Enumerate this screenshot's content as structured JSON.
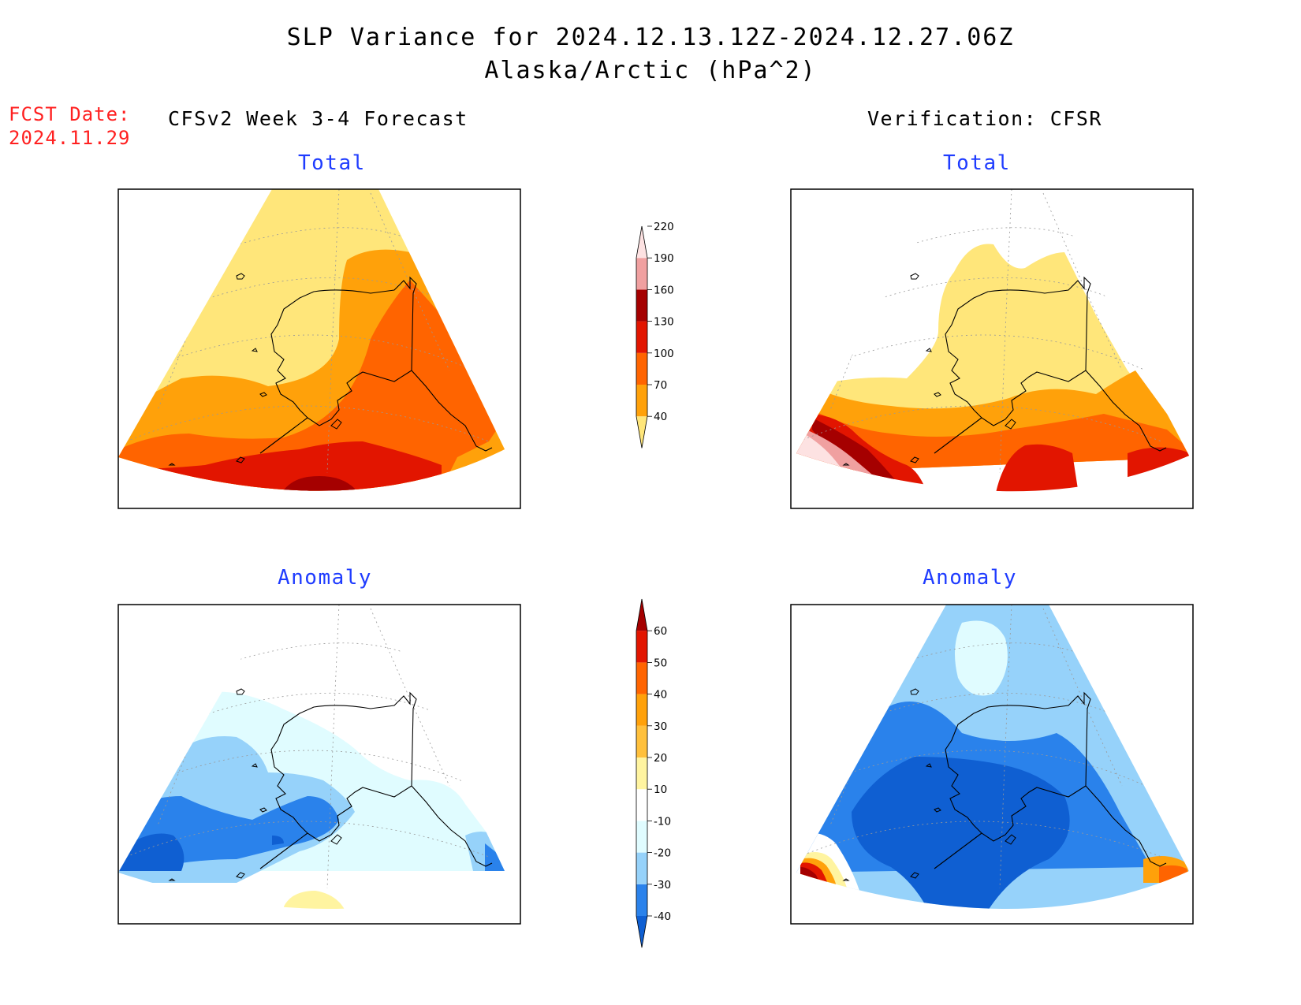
{
  "header": {
    "title": "SLP Variance for 2024.12.13.12Z-2024.12.27.06Z",
    "subtitle": "Alaska/Arctic (hPa^2)"
  },
  "fcst": {
    "line1": "FCST Date:",
    "line2": "2024.11.29"
  },
  "columns": {
    "left": "CFSv2 Week 3-4 Forecast",
    "right": "Verification: CFSR"
  },
  "panel_titles": {
    "top_left": "Total",
    "top_right": "Total",
    "bottom_left": "Anomaly",
    "bottom_right": "Anomaly"
  },
  "colorbars": {
    "total": {
      "levels": [
        "40",
        "70",
        "100",
        "130",
        "160",
        "190",
        "220"
      ],
      "colors": [
        "#ffe67a",
        "#ffa10a",
        "#ff6400",
        "#e21500",
        "#a50000",
        "#f0a0a0",
        "#fde2e2"
      ]
    },
    "anomaly": {
      "levels": [
        "-40",
        "-30",
        "-20",
        "-10",
        "10",
        "20",
        "30",
        "40",
        "50",
        "60"
      ],
      "colors": [
        "#0f5fd2",
        "#2a82eb",
        "#96d2fa",
        "#e0fcff",
        "#ffffff",
        "#fff4a0",
        "#ffc03c",
        "#ffa10a",
        "#ff6400",
        "#e21500",
        "#a50000"
      ]
    }
  },
  "palette": {
    "total": {
      "light_yellow": "#ffe67a",
      "orange": "#ffa10a",
      "dark_orange": "#ff6400",
      "red": "#e21500",
      "dark_red": "#a50000",
      "pink": "#f0a0a0",
      "light_pink": "#fde2e2"
    },
    "anomaly": {
      "deep_blue": "#0f5fd2",
      "blue": "#2a82eb",
      "light_blue": "#96d2fa",
      "pale_blue": "#e0fcff",
      "yellow": "#fff4a0",
      "orange": "#ffa10a",
      "dark_orange": "#ff6400",
      "red": "#e21500",
      "dark_red": "#a50000"
    }
  }
}
